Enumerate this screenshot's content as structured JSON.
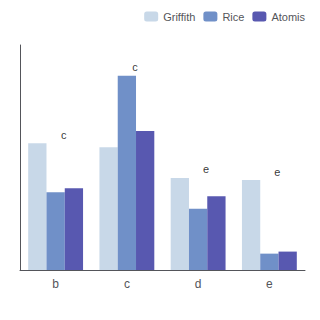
{
  "chart_data": {
    "type": "bar",
    "categories": [
      "b",
      "c",
      "d",
      "e"
    ],
    "series": [
      {
        "name": "Griffith",
        "color": "#c8d8e8",
        "values": [
          0.62,
          0.6,
          0.45,
          0.44
        ]
      },
      {
        "name": "Rice",
        "color": "#7090c8",
        "values": [
          0.38,
          0.95,
          0.3,
          0.08
        ]
      },
      {
        "name": "Atomis",
        "color": "#5858b0",
        "values": [
          0.4,
          0.68,
          0.36,
          0.09
        ]
      }
    ],
    "annotations": [
      {
        "text": "c",
        "category": "b"
      },
      {
        "text": "c",
        "category": "c"
      },
      {
        "text": "e",
        "category": "d"
      },
      {
        "text": "e",
        "category": "e"
      }
    ],
    "ylim": [
      0,
      1.1
    ],
    "yticks": [],
    "grid": false,
    "tick_labels": "x",
    "legend": "upper right"
  }
}
